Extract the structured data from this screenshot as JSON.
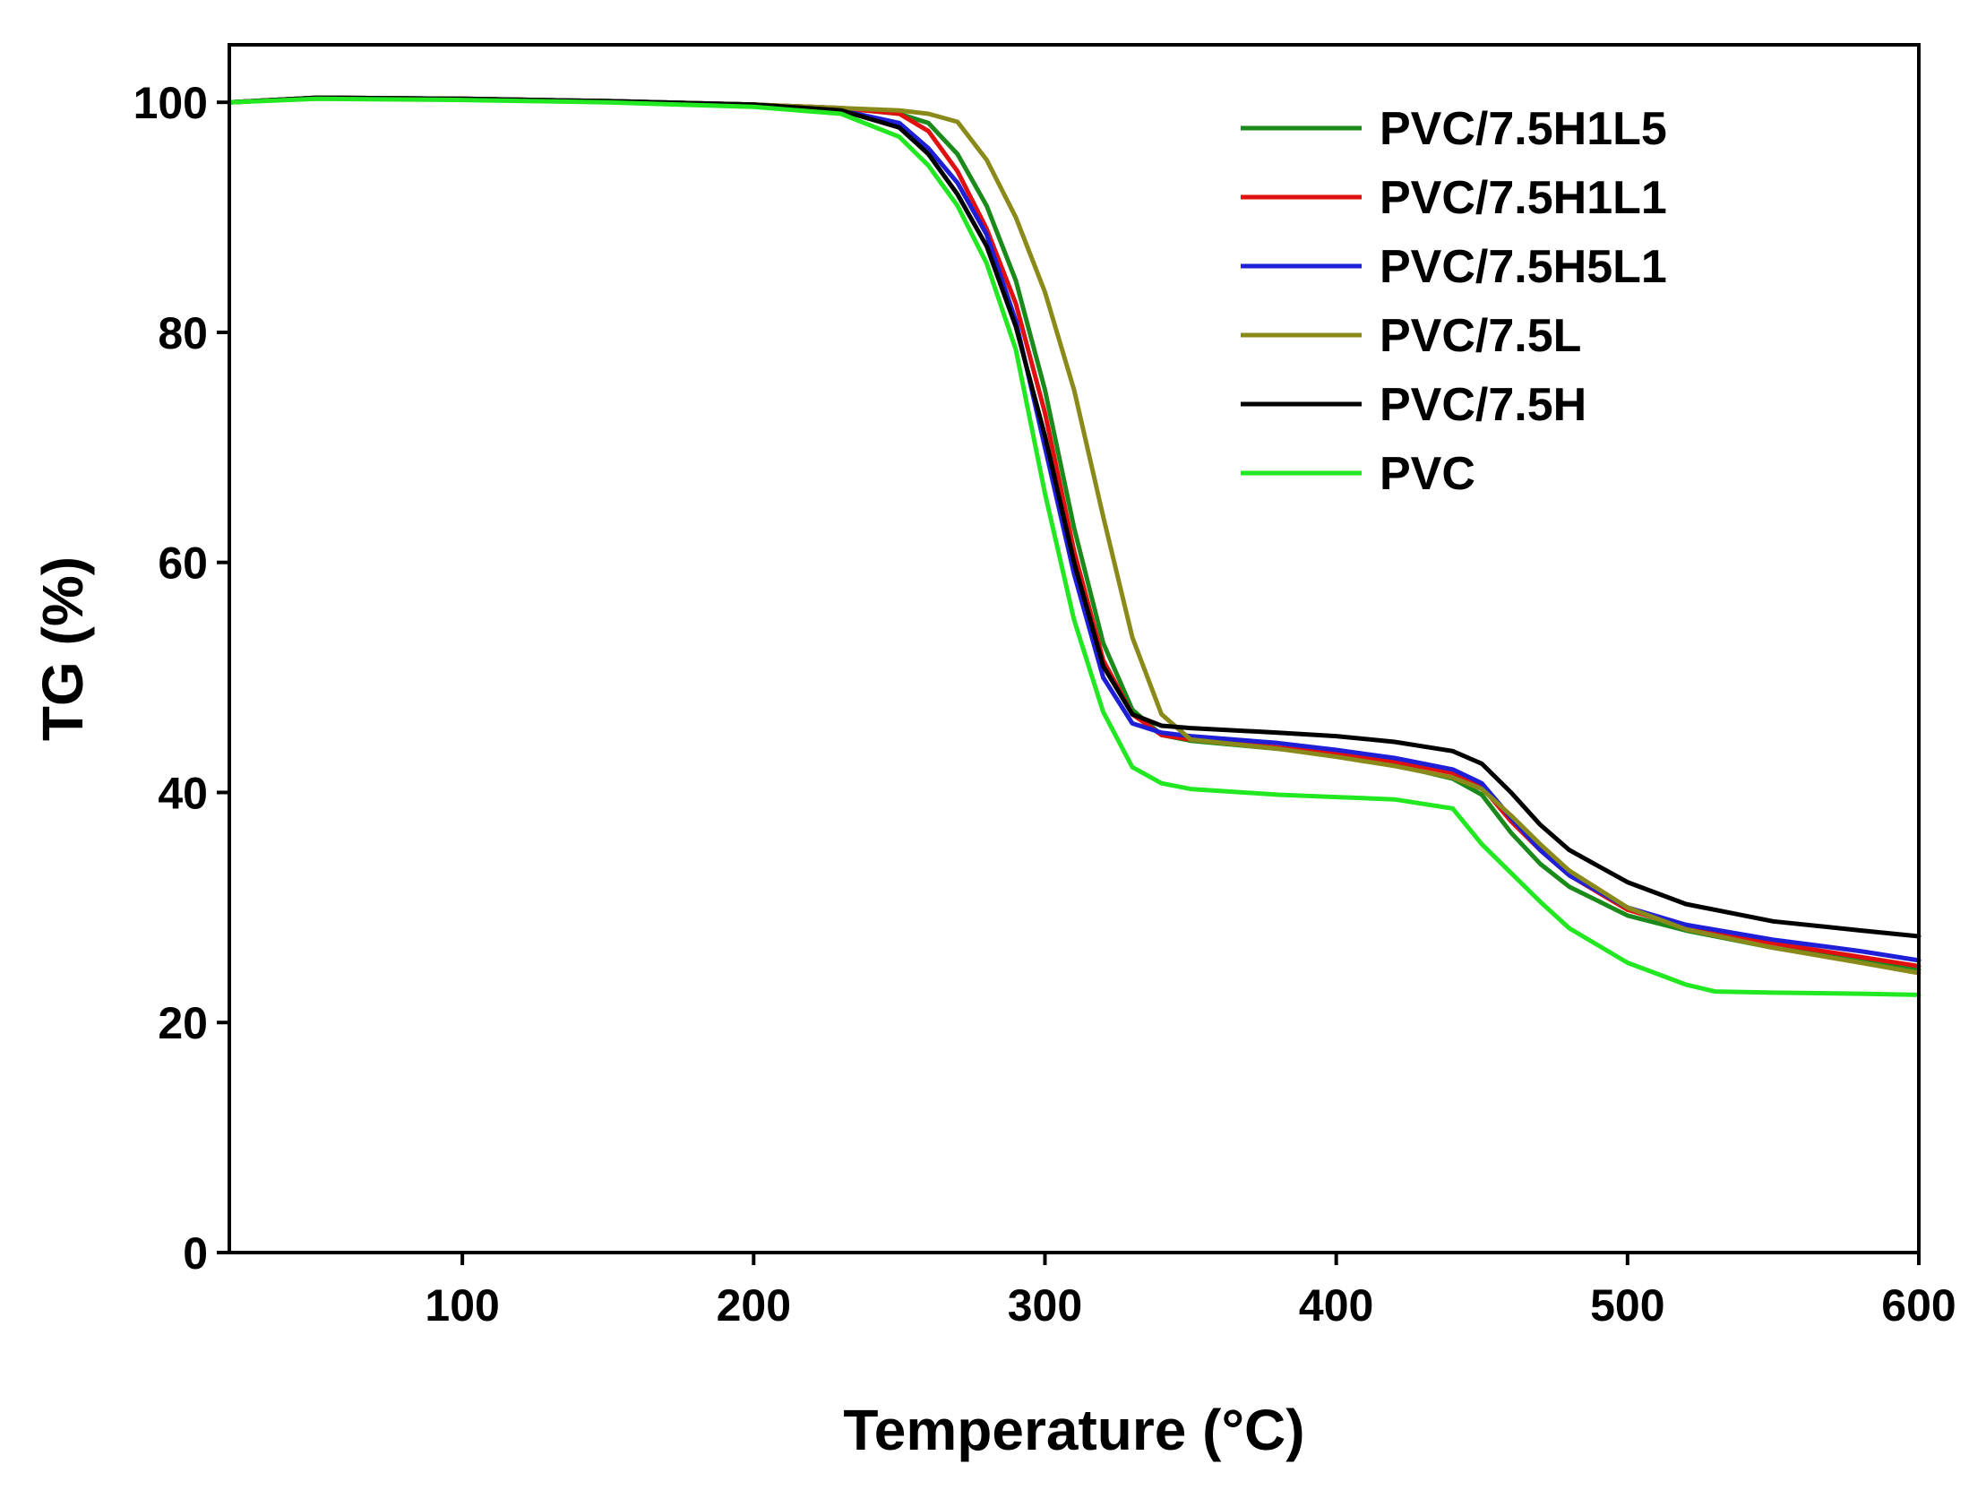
{
  "chart_data": {
    "type": "line",
    "title": "",
    "xlabel": "Temperature (°C)",
    "ylabel": "TG (%)",
    "xlim": [
      20,
      600
    ],
    "ylim": [
      0,
      105
    ],
    "xticks": [
      100,
      200,
      300,
      400,
      500,
      600
    ],
    "yticks": [
      0,
      20,
      40,
      60,
      80,
      100
    ],
    "legend_position": "top-right",
    "series": [
      {
        "name": "PVC/7.5H1L5",
        "color": "#1a8a1a",
        "points": [
          [
            20,
            100
          ],
          [
            50,
            100.4
          ],
          [
            100,
            100.3
          ],
          [
            150,
            100.1
          ],
          [
            200,
            99.8
          ],
          [
            230,
            99.5
          ],
          [
            250,
            99
          ],
          [
            260,
            98.2
          ],
          [
            270,
            95.5
          ],
          [
            280,
            91
          ],
          [
            290,
            84.5
          ],
          [
            300,
            75
          ],
          [
            310,
            63
          ],
          [
            320,
            53
          ],
          [
            330,
            47.2
          ],
          [
            340,
            45
          ],
          [
            350,
            44.5
          ],
          [
            380,
            43.8
          ],
          [
            400,
            43.2
          ],
          [
            420,
            42.4
          ],
          [
            440,
            41.2
          ],
          [
            450,
            39.8
          ],
          [
            460,
            36.5
          ],
          [
            470,
            33.8
          ],
          [
            480,
            31.8
          ],
          [
            500,
            29.3
          ],
          [
            520,
            28
          ],
          [
            550,
            26.5
          ],
          [
            580,
            25.4
          ],
          [
            600,
            24.6
          ]
        ]
      },
      {
        "name": "PVC/7.5H1L1",
        "color": "#e01010",
        "points": [
          [
            20,
            100
          ],
          [
            50,
            100.4
          ],
          [
            100,
            100.3
          ],
          [
            150,
            100.1
          ],
          [
            200,
            99.8
          ],
          [
            230,
            99.5
          ],
          [
            250,
            99
          ],
          [
            260,
            97.5
          ],
          [
            270,
            94
          ],
          [
            280,
            89
          ],
          [
            290,
            82.5
          ],
          [
            300,
            73
          ],
          [
            310,
            61
          ],
          [
            320,
            51.5
          ],
          [
            330,
            46.8
          ],
          [
            340,
            45
          ],
          [
            350,
            44.6
          ],
          [
            380,
            43.9
          ],
          [
            400,
            43.4
          ],
          [
            420,
            42.7
          ],
          [
            440,
            41.7
          ],
          [
            450,
            40.5
          ],
          [
            460,
            37.5
          ],
          [
            470,
            35
          ],
          [
            480,
            32.8
          ],
          [
            500,
            29.8
          ],
          [
            520,
            28.3
          ],
          [
            550,
            26.9
          ],
          [
            580,
            25.7
          ],
          [
            600,
            24.9
          ]
        ]
      },
      {
        "name": "PVC/7.5H5L1",
        "color": "#1f1fd8",
        "points": [
          [
            20,
            100
          ],
          [
            50,
            100.4
          ],
          [
            100,
            100.3
          ],
          [
            150,
            100.1
          ],
          [
            200,
            99.8
          ],
          [
            230,
            99.3
          ],
          [
            250,
            98.2
          ],
          [
            260,
            96
          ],
          [
            270,
            93
          ],
          [
            280,
            88.5
          ],
          [
            290,
            81
          ],
          [
            300,
            70
          ],
          [
            310,
            59
          ],
          [
            320,
            50
          ],
          [
            330,
            46
          ],
          [
            340,
            45.2
          ],
          [
            350,
            44.9
          ],
          [
            380,
            44.3
          ],
          [
            400,
            43.7
          ],
          [
            420,
            43
          ],
          [
            440,
            42
          ],
          [
            450,
            40.8
          ],
          [
            460,
            37.8
          ],
          [
            470,
            35
          ],
          [
            480,
            32.8
          ],
          [
            500,
            30
          ],
          [
            520,
            28.5
          ],
          [
            550,
            27.2
          ],
          [
            580,
            26.2
          ],
          [
            600,
            25.4
          ]
        ]
      },
      {
        "name": "PVC/7.5L",
        "color": "#8a8a1a",
        "points": [
          [
            20,
            100
          ],
          [
            50,
            100.4
          ],
          [
            100,
            100.3
          ],
          [
            150,
            100.1
          ],
          [
            200,
            99.8
          ],
          [
            230,
            99.5
          ],
          [
            250,
            99.3
          ],
          [
            260,
            99
          ],
          [
            270,
            98.3
          ],
          [
            280,
            95
          ],
          [
            290,
            90
          ],
          [
            300,
            83.5
          ],
          [
            310,
            75
          ],
          [
            320,
            64
          ],
          [
            330,
            53.5
          ],
          [
            340,
            46.8
          ],
          [
            350,
            44.6
          ],
          [
            380,
            43.8
          ],
          [
            400,
            43.1
          ],
          [
            420,
            42.3
          ],
          [
            440,
            41.3
          ],
          [
            450,
            40.3
          ],
          [
            460,
            38
          ],
          [
            470,
            35.5
          ],
          [
            480,
            33.2
          ],
          [
            500,
            30
          ],
          [
            520,
            28.1
          ],
          [
            550,
            26.5
          ],
          [
            580,
            25.2
          ],
          [
            600,
            24.3
          ]
        ]
      },
      {
        "name": "PVC/7.5H",
        "color": "#000000",
        "points": [
          [
            20,
            100
          ],
          [
            50,
            100.4
          ],
          [
            100,
            100.3
          ],
          [
            150,
            100.1
          ],
          [
            200,
            99.8
          ],
          [
            230,
            99.3
          ],
          [
            250,
            97.8
          ],
          [
            260,
            95.5
          ],
          [
            270,
            92
          ],
          [
            280,
            87.5
          ],
          [
            290,
            80.5
          ],
          [
            300,
            71
          ],
          [
            310,
            60
          ],
          [
            320,
            51
          ],
          [
            330,
            46.8
          ],
          [
            340,
            45.8
          ],
          [
            350,
            45.6
          ],
          [
            380,
            45.2
          ],
          [
            400,
            44.9
          ],
          [
            420,
            44.4
          ],
          [
            440,
            43.6
          ],
          [
            450,
            42.5
          ],
          [
            460,
            40
          ],
          [
            470,
            37.2
          ],
          [
            480,
            35
          ],
          [
            500,
            32.2
          ],
          [
            520,
            30.3
          ],
          [
            550,
            28.8
          ],
          [
            580,
            28
          ],
          [
            600,
            27.5
          ]
        ]
      },
      {
        "name": "PVC",
        "color": "#22e822",
        "points": [
          [
            20,
            100
          ],
          [
            50,
            100.3
          ],
          [
            100,
            100.2
          ],
          [
            150,
            100
          ],
          [
            200,
            99.6
          ],
          [
            230,
            99
          ],
          [
            250,
            97
          ],
          [
            260,
            94.5
          ],
          [
            270,
            91
          ],
          [
            280,
            86
          ],
          [
            290,
            78.5
          ],
          [
            300,
            66
          ],
          [
            310,
            55
          ],
          [
            320,
            47
          ],
          [
            330,
            42.2
          ],
          [
            340,
            40.8
          ],
          [
            350,
            40.3
          ],
          [
            380,
            39.8
          ],
          [
            400,
            39.6
          ],
          [
            420,
            39.4
          ],
          [
            440,
            38.6
          ],
          [
            450,
            35.5
          ],
          [
            460,
            33
          ],
          [
            470,
            30.5
          ],
          [
            480,
            28.2
          ],
          [
            500,
            25.2
          ],
          [
            520,
            23.3
          ],
          [
            530,
            22.7
          ],
          [
            550,
            22.6
          ],
          [
            580,
            22.5
          ],
          [
            600,
            22.4
          ]
        ]
      }
    ]
  }
}
